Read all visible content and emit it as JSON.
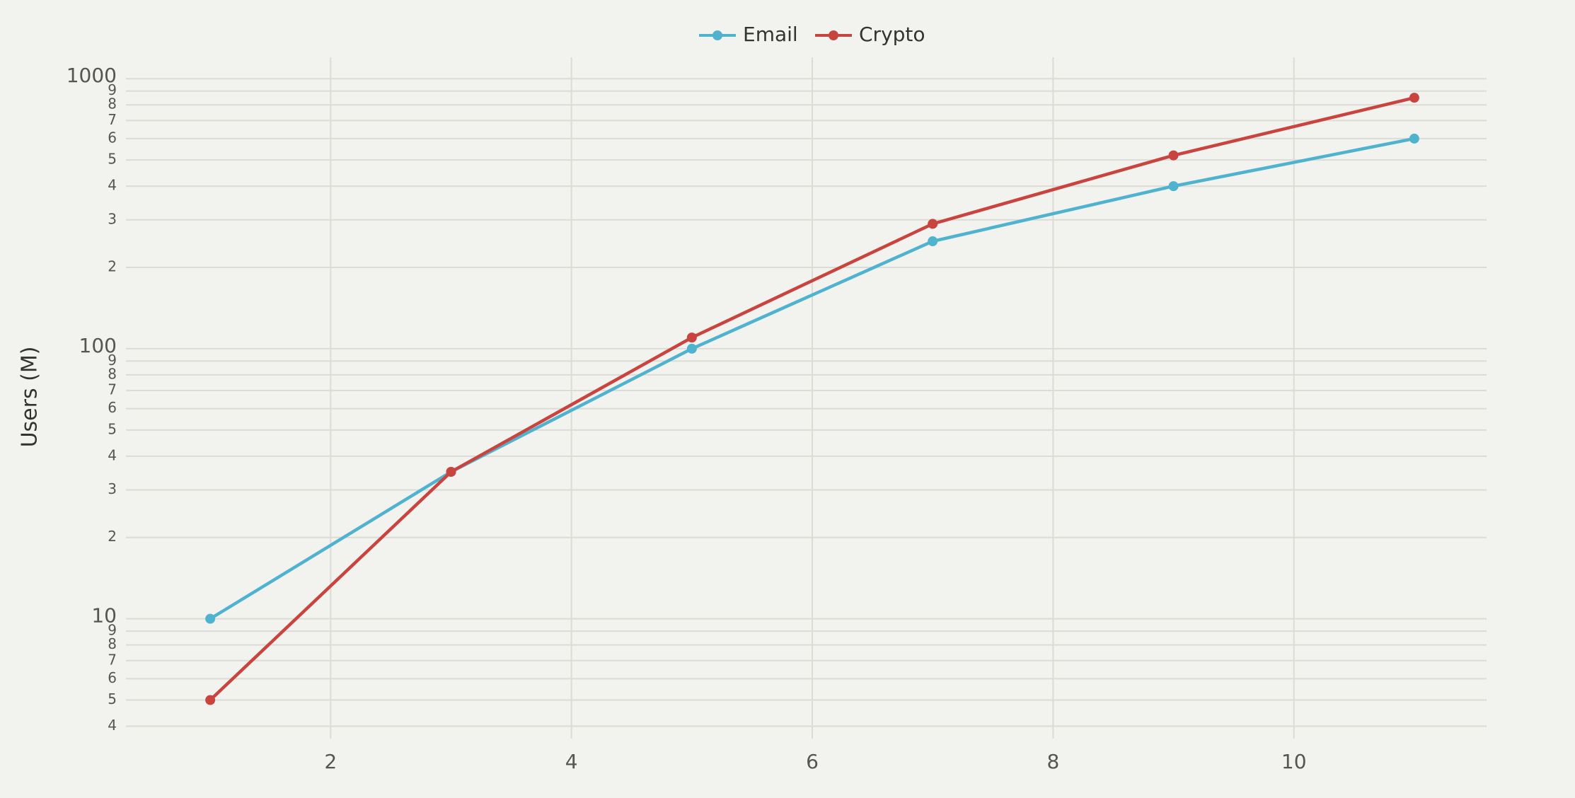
{
  "chart_data": {
    "type": "line",
    "y_label": "Users (M)",
    "x": [
      1,
      3,
      5,
      7,
      9,
      11
    ],
    "series": [
      {
        "name": "Email",
        "color": "#4fb3cf",
        "values": [
          10,
          35,
          100,
          250,
          400,
          600
        ]
      },
      {
        "name": "Crypto",
        "color": "#c9443f",
        "values": [
          5,
          35,
          110,
          290,
          520,
          850
        ]
      }
    ],
    "xlim": [
      0.3,
      11.6
    ],
    "xticks": [
      2,
      4,
      6,
      8,
      10
    ],
    "ylim": [
      3.6,
      1200
    ],
    "log_y": true,
    "grid": true,
    "legend": "top",
    "yticks": [
      4,
      5,
      6,
      7,
      8,
      9,
      10,
      {
        "value": 20,
        "label": "2"
      },
      {
        "value": 30,
        "label": "3"
      },
      {
        "value": 40,
        "label": "4"
      },
      {
        "value": 50,
        "label": "5"
      },
      {
        "value": 60,
        "label": "6"
      },
      {
        "value": 70,
        "label": "7"
      },
      {
        "value": 80,
        "label": "8"
      },
      {
        "value": 90,
        "label": "9"
      },
      100,
      {
        "value": 200,
        "label": "2"
      },
      {
        "value": 300,
        "label": "3"
      },
      {
        "value": 400,
        "label": "4"
      },
      {
        "value": 500,
        "label": "5"
      },
      {
        "value": 600,
        "label": "6"
      },
      {
        "value": 700,
        "label": "7"
      },
      {
        "value": 800,
        "label": "8"
      },
      {
        "value": 900,
        "label": "9"
      },
      1000
    ]
  }
}
